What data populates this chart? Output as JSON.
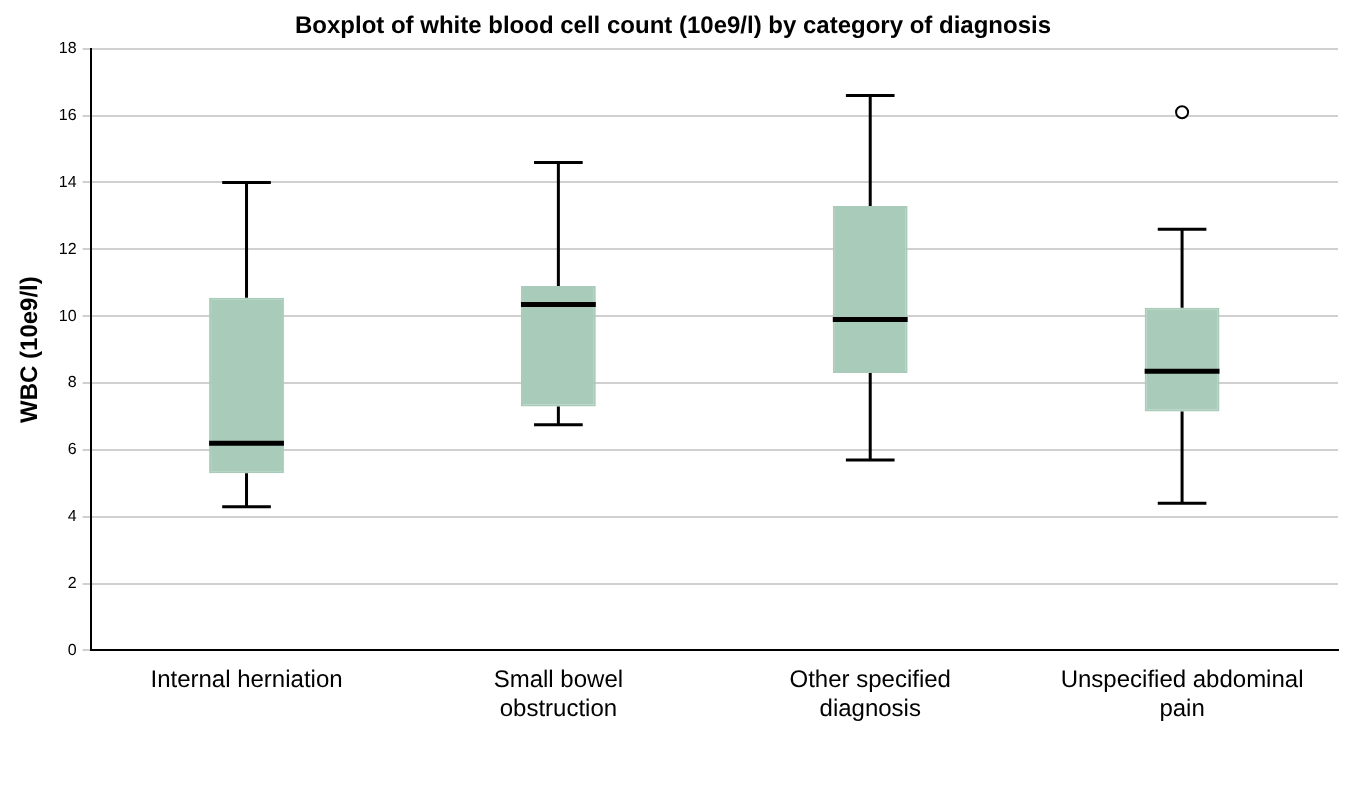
{
  "chart_data": {
    "type": "box",
    "title": "Boxplot of white blood cell count (10e9/l) by category of diagnosis",
    "ylabel": "WBC (10e9/l)",
    "categories": [
      "Internal herniation",
      "Small bowel obstruction",
      "Other specified diagnosis",
      "Unspecified abdominal pain"
    ],
    "color": "#a9cbb9",
    "boxes": [
      {
        "low": 4.3,
        "q1": 5.3,
        "median": 6.2,
        "q3": 10.55,
        "high": 14
      },
      {
        "low": 6.75,
        "q1": 7.3,
        "median": 10.35,
        "q3": 10.9,
        "high": 14.6
      },
      {
        "low": 5.7,
        "q1": 8.3,
        "median": 9.9,
        "q3": 13.3,
        "high": 16.6
      },
      {
        "low": 4.4,
        "q1": 7.15,
        "median": 8.35,
        "q3": 10.25,
        "high": 12.6,
        "outliers": [
          16.1
        ]
      }
    ],
    "ylim": [
      0,
      18
    ],
    "yticks": [
      0,
      2,
      4,
      6,
      8,
      10,
      12,
      14,
      16,
      18
    ],
    "grid": "y"
  }
}
